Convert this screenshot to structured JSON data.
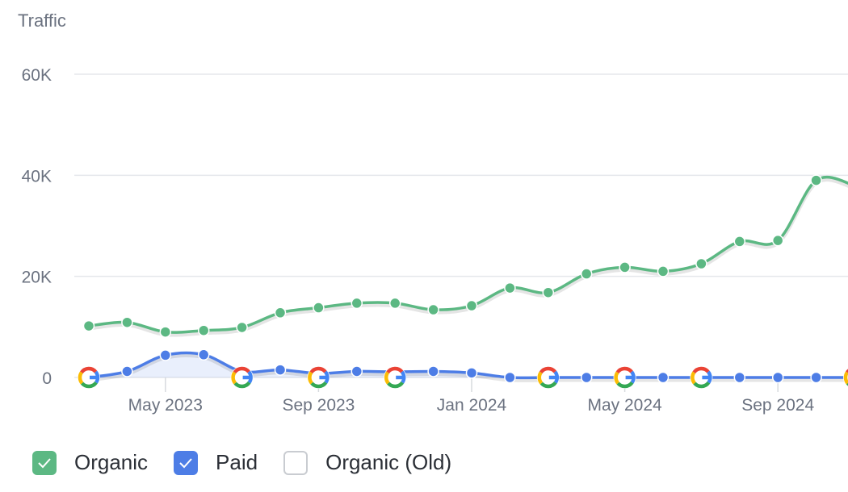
{
  "chart_data": {
    "type": "line",
    "ylabel": "Traffic",
    "ylim": [
      0,
      60000
    ],
    "y_ticks": [
      "0",
      "20K",
      "40K",
      "60K"
    ],
    "y_tick_values": [
      0,
      20000,
      40000,
      60000
    ],
    "x_tick_labels": [
      "May 2023",
      "Sep 2023",
      "Jan 2024",
      "May 2024",
      "Sep 2024"
    ],
    "x": [
      "2023-03-01",
      "2023-04-01",
      "2023-05-01",
      "2023-06-01",
      "2023-07-01",
      "2023-08-01",
      "2023-09-01",
      "2023-10-01",
      "2023-11-01",
      "2023-12-01",
      "2024-01-01",
      "2024-02-01",
      "2024-03-01",
      "2024-04-01",
      "2024-05-01",
      "2024-06-01",
      "2024-07-01",
      "2024-08-01",
      "2024-09-01",
      "2024-10-01",
      "2024-11-01"
    ],
    "series": [
      {
        "name": "Organic",
        "color": "#5cb883",
        "values": [
          10200,
          10900,
          9000,
          9300,
          9900,
          12800,
          13800,
          14700,
          14700,
          13400,
          14200,
          17700,
          16800,
          20500,
          21800,
          21000,
          22500,
          26900,
          27100,
          39000,
          38000
        ]
      },
      {
        "name": "Paid",
        "color": "#4d7de6",
        "values": [
          0,
          1200,
          4400,
          4500,
          1200,
          1500,
          800,
          1200,
          1100,
          1200,
          900,
          0,
          0,
          0,
          0,
          0,
          0,
          0,
          0,
          0,
          0
        ]
      }
    ],
    "google_marker_x": [
      "2023-03-01",
      "2023-07-01",
      "2023-09-01",
      "2023-11-01",
      "2024-03-01",
      "2024-05-01",
      "2024-07-01",
      "2024-11-01"
    ],
    "grid": true,
    "legend_position": "bottom-left"
  },
  "legend": [
    {
      "label": "Organic",
      "checked": true,
      "color": "#5cb883"
    },
    {
      "label": "Paid",
      "checked": true,
      "color": "#4d7de6"
    },
    {
      "label": "Organic (Old)",
      "checked": false,
      "color": "#c9ccd1"
    }
  ]
}
